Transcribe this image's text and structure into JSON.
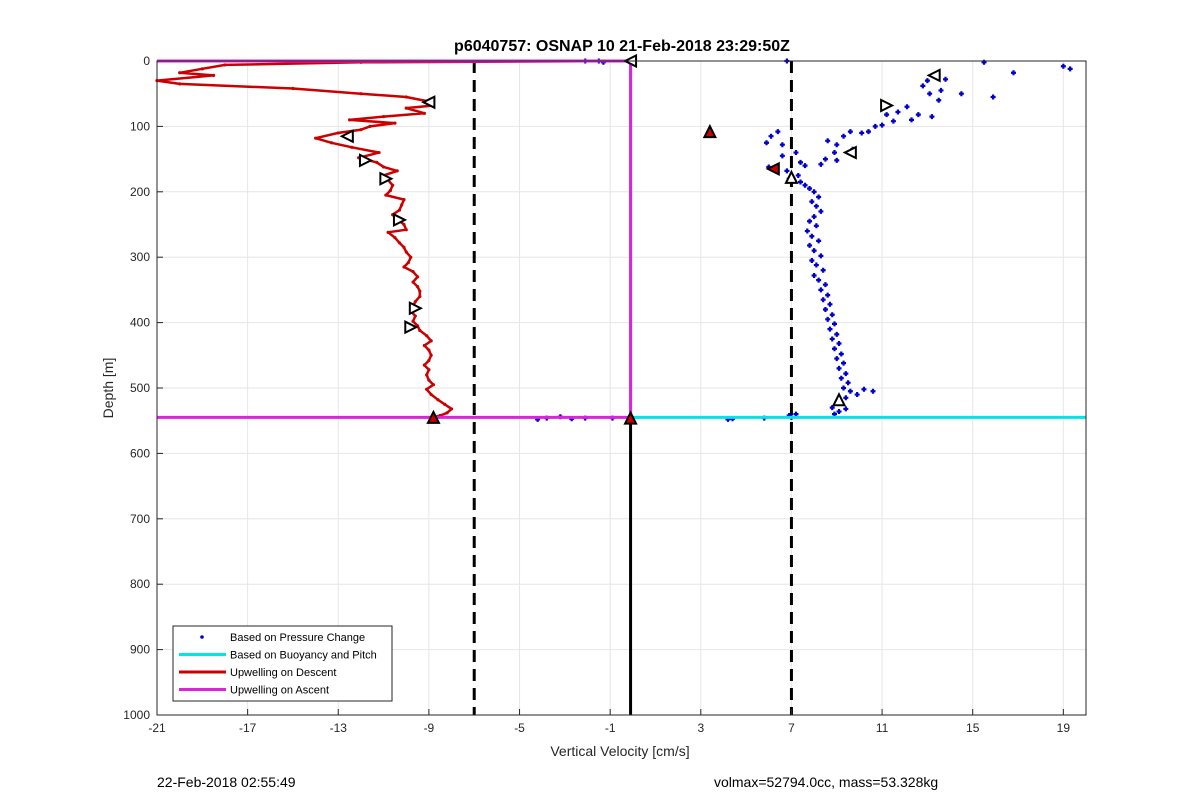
{
  "chart_data": {
    "type": "scatter",
    "title": "p6040757: OSNAP 10 21-Feb-2018 23:29:50Z",
    "xlabel": "Vertical Velocity [cm/s]",
    "ylabel": "Depth [m]",
    "xlim": [
      -21,
      20
    ],
    "ylim": [
      0,
      1000
    ],
    "y_reversed": true,
    "grid": true,
    "xticks": [
      -21,
      -17,
      -13,
      -9,
      -5,
      -1,
      3,
      7,
      11,
      15,
      19
    ],
    "yticks": [
      0,
      100,
      200,
      300,
      400,
      500,
      600,
      700,
      800,
      900,
      1000
    ],
    "legend_position": "bottom-left",
    "reference_lines": {
      "dashed_x": [
        -7,
        7
      ],
      "zero_x": -0.1,
      "bottom_depth": 545
    },
    "series": [
      {
        "name": "Based on Pressure Change",
        "color": "#0000cc",
        "marker": "dot",
        "points": [
          [
            6.8,
            0
          ],
          [
            15.5,
            2
          ],
          [
            19.0,
            8
          ],
          [
            19.3,
            12
          ],
          [
            16.8,
            18
          ],
          [
            13.8,
            28
          ],
          [
            13.3,
            22
          ],
          [
            13.0,
            30
          ],
          [
            12.8,
            38
          ],
          [
            13.6,
            45
          ],
          [
            13.1,
            50
          ],
          [
            14.5,
            50
          ],
          [
            15.9,
            55
          ],
          [
            13.5,
            60
          ],
          [
            12.1,
            70
          ],
          [
            11.7,
            78
          ],
          [
            11.2,
            82
          ],
          [
            12.6,
            82
          ],
          [
            11.0,
            98
          ],
          [
            10.7,
            100
          ],
          [
            11.5,
            92
          ],
          [
            12.3,
            90
          ],
          [
            13.2,
            85
          ],
          [
            10.4,
            108
          ],
          [
            9.6,
            108
          ],
          [
            9.3,
            115
          ],
          [
            10.1,
            110
          ],
          [
            6.4,
            108
          ],
          [
            6.1,
            115
          ],
          [
            8.6,
            122
          ],
          [
            9.0,
            128
          ],
          [
            8.9,
            140
          ],
          [
            9.7,
            135
          ],
          [
            8.5,
            150
          ],
          [
            9.0,
            152
          ],
          [
            7.4,
            155
          ],
          [
            7.6,
            160
          ],
          [
            8.3,
            158
          ],
          [
            6.6,
            128
          ],
          [
            5.9,
            125
          ],
          [
            7.2,
            140
          ],
          [
            6.6,
            145
          ],
          [
            6.0,
            162
          ],
          [
            6.8,
            168
          ],
          [
            7.3,
            175
          ],
          [
            6.9,
            180
          ],
          [
            7.4,
            185
          ],
          [
            7.6,
            190
          ],
          [
            7.8,
            195
          ],
          [
            8.0,
            200
          ],
          [
            8.2,
            208
          ],
          [
            7.9,
            215
          ],
          [
            8.1,
            222
          ],
          [
            8.3,
            230
          ],
          [
            8.0,
            238
          ],
          [
            7.8,
            245
          ],
          [
            8.1,
            252
          ],
          [
            7.7,
            260
          ],
          [
            7.9,
            268
          ],
          [
            8.2,
            275
          ],
          [
            7.8,
            282
          ],
          [
            8.0,
            290
          ],
          [
            8.3,
            298
          ],
          [
            7.9,
            305
          ],
          [
            8.1,
            312
          ],
          [
            8.4,
            320
          ],
          [
            8.0,
            328
          ],
          [
            8.2,
            335
          ],
          [
            8.5,
            342
          ],
          [
            8.3,
            350
          ],
          [
            8.6,
            358
          ],
          [
            8.4,
            365
          ],
          [
            8.7,
            372
          ],
          [
            8.5,
            380
          ],
          [
            8.8,
            388
          ],
          [
            8.6,
            395
          ],
          [
            8.9,
            402
          ],
          [
            8.7,
            410
          ],
          [
            9.0,
            418
          ],
          [
            8.8,
            425
          ],
          [
            9.1,
            432
          ],
          [
            8.9,
            440
          ],
          [
            9.2,
            448
          ],
          [
            9.0,
            455
          ],
          [
            9.3,
            462
          ],
          [
            9.1,
            470
          ],
          [
            9.4,
            478
          ],
          [
            9.2,
            485
          ],
          [
            9.5,
            492
          ],
          [
            9.3,
            500
          ],
          [
            9.6,
            505
          ],
          [
            10.2,
            502
          ],
          [
            10.6,
            505
          ],
          [
            9.9,
            510
          ],
          [
            9.4,
            515
          ],
          [
            9.0,
            522
          ],
          [
            8.8,
            530
          ],
          [
            9.1,
            536
          ],
          [
            9.4,
            532
          ],
          [
            8.9,
            540
          ],
          [
            7.2,
            540
          ],
          [
            7.0,
            545
          ],
          [
            6.9,
            542
          ],
          [
            4.4,
            547
          ],
          [
            4.2,
            548
          ],
          [
            5.8,
            546
          ],
          [
            -2.1,
            0
          ],
          [
            -1.3,
            2
          ],
          [
            -1.5,
            0
          ],
          [
            -3.8,
            546
          ],
          [
            -4.2,
            548
          ],
          [
            -3.2,
            544
          ],
          [
            -2.7,
            547
          ],
          [
            -2.1,
            546
          ],
          [
            -0.9,
            546
          ]
        ]
      },
      {
        "name": "Based on Buoyancy and Pitch",
        "color": "#00e5e5",
        "marker": "line",
        "points": [
          [
            -0.1,
            0
          ],
          [
            -0.1,
            545
          ],
          [
            20,
            545
          ]
        ]
      },
      {
        "name": "Upwelling on Descent",
        "color": "#cc0000",
        "marker": "line",
        "points": [
          [
            -0.1,
            0
          ],
          [
            -12.0,
            2
          ],
          [
            -18.0,
            6
          ],
          [
            -19.0,
            12
          ],
          [
            -20.0,
            18
          ],
          [
            -18.5,
            22
          ],
          [
            -21.0,
            30
          ],
          [
            -20.0,
            35
          ],
          [
            -15.0,
            42
          ],
          [
            -12.0,
            50
          ],
          [
            -10.0,
            55
          ],
          [
            -9.0,
            62
          ],
          [
            -8.8,
            68
          ],
          [
            -10.0,
            72
          ],
          [
            -9.2,
            80
          ],
          [
            -11.0,
            85
          ],
          [
            -12.5,
            90
          ],
          [
            -10.5,
            95
          ],
          [
            -11.6,
            100
          ],
          [
            -12.0,
            105
          ],
          [
            -13.0,
            110
          ],
          [
            -14.0,
            118
          ],
          [
            -13.3,
            125
          ],
          [
            -12.4,
            132
          ],
          [
            -11.2,
            140
          ],
          [
            -12.1,
            148
          ],
          [
            -11.3,
            155
          ],
          [
            -11.0,
            162
          ],
          [
            -10.4,
            168
          ],
          [
            -11.0,
            175
          ],
          [
            -10.8,
            182
          ],
          [
            -10.6,
            190
          ],
          [
            -10.7,
            198
          ],
          [
            -10.9,
            205
          ],
          [
            -10.1,
            212
          ],
          [
            -10.2,
            220
          ],
          [
            -10.3,
            228
          ],
          [
            -10.6,
            235
          ],
          [
            -10.4,
            242
          ],
          [
            -10.1,
            250
          ],
          [
            -10.0,
            258
          ],
          [
            -10.8,
            262
          ],
          [
            -10.5,
            270
          ],
          [
            -10.3,
            278
          ],
          [
            -10.1,
            285
          ],
          [
            -10.0,
            292
          ],
          [
            -9.8,
            300
          ],
          [
            -9.9,
            308
          ],
          [
            -10.1,
            315
          ],
          [
            -9.7,
            322
          ],
          [
            -9.5,
            330
          ],
          [
            -9.7,
            338
          ],
          [
            -9.5,
            345
          ],
          [
            -9.4,
            352
          ],
          [
            -9.4,
            360
          ],
          [
            -9.6,
            368
          ],
          [
            -9.7,
            375
          ],
          [
            -9.8,
            382
          ],
          [
            -9.6,
            390
          ],
          [
            -9.7,
            398
          ],
          [
            -9.5,
            405
          ],
          [
            -9.4,
            412
          ],
          [
            -9.1,
            420
          ],
          [
            -8.9,
            428
          ],
          [
            -9.2,
            435
          ],
          [
            -9.0,
            442
          ],
          [
            -8.9,
            450
          ],
          [
            -9.0,
            458
          ],
          [
            -9.2,
            465
          ],
          [
            -9.0,
            472
          ],
          [
            -9.1,
            480
          ],
          [
            -9.0,
            488
          ],
          [
            -8.8,
            495
          ],
          [
            -9.1,
            502
          ],
          [
            -8.9,
            510
          ],
          [
            -8.6,
            518
          ],
          [
            -8.3,
            525
          ],
          [
            -8.0,
            532
          ],
          [
            -8.2,
            538
          ],
          [
            -8.5,
            542
          ],
          [
            -8.8,
            545
          ]
        ]
      },
      {
        "name": "Upwelling on Ascent",
        "color": "#dd22dd",
        "marker": "line",
        "points": [
          [
            -21,
            0
          ],
          [
            -0.1,
            0
          ],
          [
            -0.1,
            545
          ],
          [
            -21,
            545
          ]
        ]
      }
    ],
    "triangle_markers": [
      {
        "x": 13.3,
        "y": 22,
        "dir": "left",
        "fill": "white"
      },
      {
        "x": 11.2,
        "y": 68,
        "dir": "right",
        "fill": "white"
      },
      {
        "x": 9.6,
        "y": 140,
        "dir": "left",
        "fill": "white"
      },
      {
        "x": 7.0,
        "y": 178,
        "dir": "up",
        "fill": "white"
      },
      {
        "x": 6.2,
        "y": 165,
        "dir": "left",
        "fill": "red"
      },
      {
        "x": 3.4,
        "y": 108,
        "dir": "up",
        "fill": "red"
      },
      {
        "x": 9.1,
        "y": 518,
        "dir": "up",
        "fill": "white"
      },
      {
        "x": -0.1,
        "y": 0,
        "dir": "left",
        "fill": "white"
      },
      {
        "x": -0.1,
        "y": 546,
        "dir": "up",
        "fill": "red"
      },
      {
        "x": -9.0,
        "y": 63,
        "dir": "left",
        "fill": "white"
      },
      {
        "x": -12.6,
        "y": 115,
        "dir": "left",
        "fill": "white"
      },
      {
        "x": -11.8,
        "y": 152,
        "dir": "right",
        "fill": "white"
      },
      {
        "x": -10.9,
        "y": 180,
        "dir": "right",
        "fill": "white"
      },
      {
        "x": -10.3,
        "y": 243,
        "dir": "right",
        "fill": "white"
      },
      {
        "x": -9.6,
        "y": 378,
        "dir": "right",
        "fill": "white"
      },
      {
        "x": -9.8,
        "y": 407,
        "dir": "right",
        "fill": "white"
      },
      {
        "x": -8.8,
        "y": 545,
        "dir": "up",
        "fill": "red"
      }
    ]
  },
  "footer": {
    "left": "22-Feb-2018 02:55:49",
    "right": "volmax=52794.0cc, mass=53.328kg"
  }
}
